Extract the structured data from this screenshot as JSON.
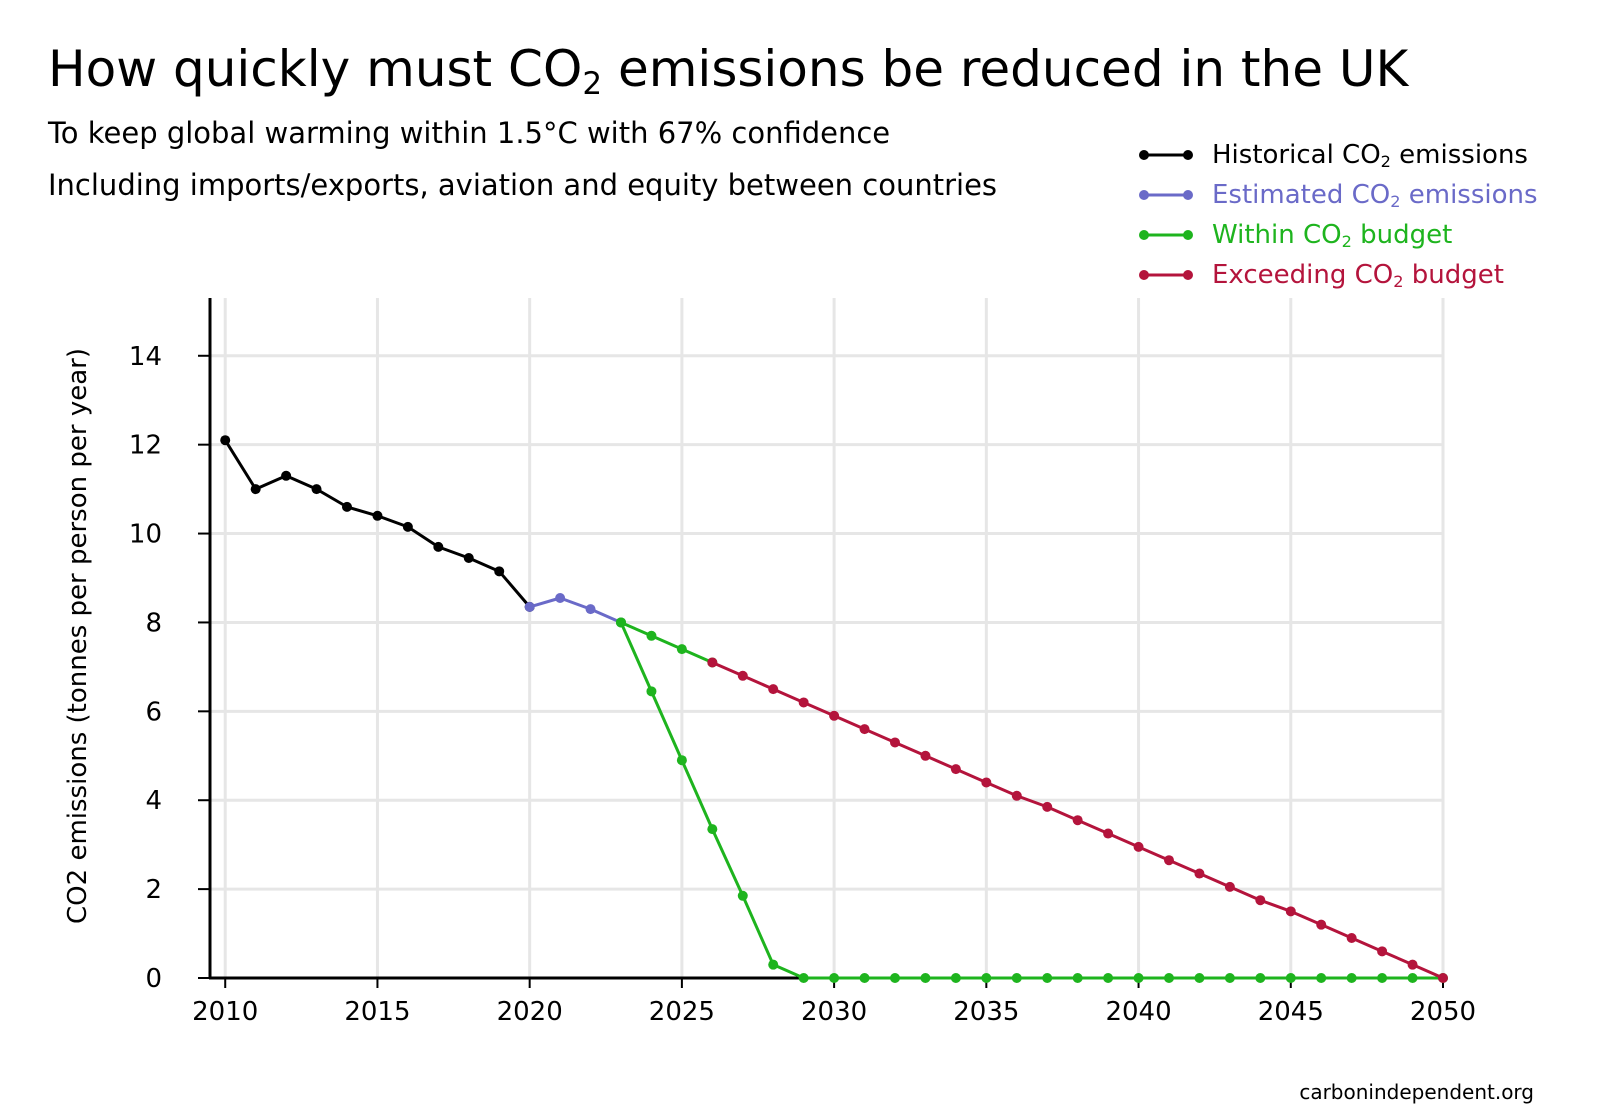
{
  "title": {
    "pre": "How quickly must CO",
    "sub": "2",
    "post": " emissions be reduced in the UK"
  },
  "subtitle1": "To keep global warming within 1.5°C with 67% confidence",
  "subtitle2": "Including imports/exports, aviation and equity between countries",
  "source": "carbonindependent.org",
  "legend": [
    {
      "pre": "Historical CO",
      "sub": "2",
      "post": " emissions",
      "color": "#000000"
    },
    {
      "pre": "Estimated CO",
      "sub": "2",
      "post": " emissions",
      "color": "#6a6ac8"
    },
    {
      "pre": "Within CO",
      "sub": "2",
      "post": " budget",
      "color": "#1eb41e"
    },
    {
      "pre": "Exceeding CO",
      "sub": "2",
      "post": " budget",
      "color": "#b4143c"
    }
  ],
  "chart_data": {
    "type": "line",
    "title": "How quickly must CO2 emissions be reduced in the UK",
    "ylabel": "CO2 emissions (tonnes per person per year)",
    "xlabel": "",
    "xlim": [
      2009.5,
      2050
    ],
    "ylim": [
      0,
      15.3
    ],
    "x_ticks": [
      2010,
      2015,
      2020,
      2025,
      2030,
      2035,
      2040,
      2045,
      2050
    ],
    "y_ticks": [
      0,
      2,
      4,
      6,
      8,
      10,
      12,
      14
    ],
    "grid": true,
    "legend_position": "top-right",
    "series": [
      {
        "name": "Historical CO2 emissions",
        "color": "#000000",
        "x": [
          2010,
          2011,
          2012,
          2013,
          2014,
          2015,
          2016,
          2017,
          2018,
          2019,
          2020
        ],
        "y": [
          12.1,
          11.0,
          11.3,
          11.0,
          10.6,
          10.4,
          10.15,
          9.7,
          9.45,
          9.15,
          8.35
        ]
      },
      {
        "name": "Estimated CO2 emissions",
        "color": "#6a6ac8",
        "x": [
          2020,
          2021,
          2022,
          2023
        ],
        "y": [
          8.35,
          8.55,
          8.3,
          8.0
        ]
      },
      {
        "name": "Within CO2 budget",
        "color": "#1eb41e",
        "x": [
          2023,
          2024,
          2025,
          2026,
          2027,
          2028,
          2029,
          2030,
          2031,
          2032,
          2033,
          2034,
          2035,
          2036,
          2037,
          2038,
          2039,
          2040,
          2041,
          2042,
          2043,
          2044,
          2045,
          2046,
          2047,
          2048,
          2049,
          2050
        ],
        "y": [
          8.0,
          6.45,
          4.9,
          3.35,
          1.85,
          0.3,
          0,
          0,
          0,
          0,
          0,
          0,
          0,
          0,
          0,
          0,
          0,
          0,
          0,
          0,
          0,
          0,
          0,
          0,
          0,
          0,
          0,
          0
        ]
      },
      {
        "name": "Within CO2 budget",
        "color": "#1eb41e",
        "x": [
          2023,
          2024,
          2025,
          2026
        ],
        "y": [
          8.0,
          7.7,
          7.4,
          7.1
        ]
      },
      {
        "name": "Exceeding CO2 budget",
        "color": "#b4143c",
        "x": [
          2026,
          2027,
          2028,
          2029,
          2030,
          2031,
          2032,
          2033,
          2034,
          2035,
          2036,
          2037,
          2038,
          2039,
          2040,
          2041,
          2042,
          2043,
          2044,
          2045,
          2046,
          2047,
          2048,
          2049,
          2050
        ],
        "y": [
          7.1,
          6.8,
          6.5,
          6.2,
          5.9,
          5.6,
          5.3,
          5.0,
          4.7,
          4.4,
          4.1,
          3.85,
          3.55,
          3.25,
          2.95,
          2.65,
          2.35,
          2.05,
          1.75,
          1.5,
          1.2,
          0.9,
          0.6,
          0.3,
          0
        ]
      }
    ]
  }
}
